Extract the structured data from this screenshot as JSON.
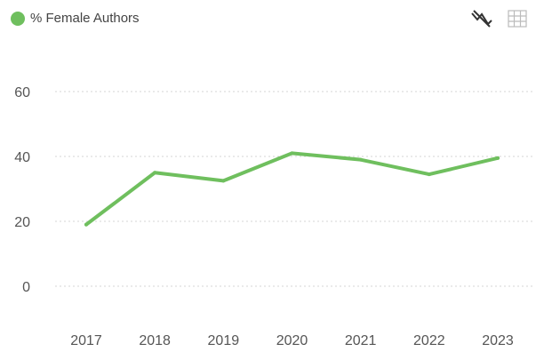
{
  "legend": {
    "label": "% Female Authors",
    "color": "#6fbf5e"
  },
  "toolbar": {
    "icons": [
      "line-chart-toggle-icon",
      "table-view-icon"
    ]
  },
  "chart_data": {
    "type": "line",
    "x": [
      "2017",
      "2018",
      "2019",
      "2020",
      "2021",
      "2022",
      "2023"
    ],
    "series": [
      {
        "name": "% Female Authors",
        "values": [
          19,
          35,
          32.5,
          41,
          39,
          34.5,
          39.5
        ],
        "color": "#6fbf5e"
      }
    ],
    "y_ticks": [
      0,
      20,
      40,
      60
    ],
    "ylim": [
      0,
      60
    ],
    "grid": true,
    "legend_position": "top-left"
  }
}
